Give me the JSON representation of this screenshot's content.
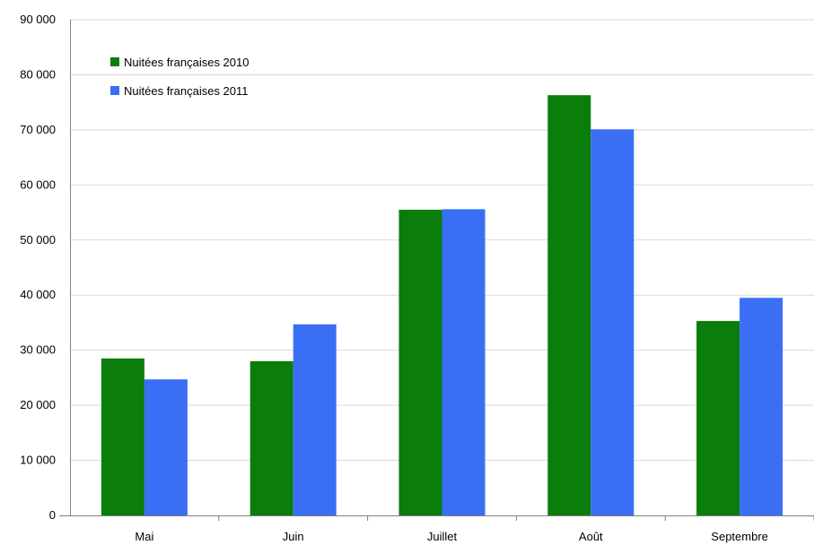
{
  "chart_data": {
    "type": "bar",
    "categories": [
      "Mai",
      "Juin",
      "Juillet",
      "Août",
      "Septembre"
    ],
    "series": [
      {
        "name": "Nuitées françaises 2010",
        "color": "#0a7d0a",
        "values": [
          28500,
          28000,
          55500,
          76300,
          35300
        ]
      },
      {
        "name": "Nuitées françaises 2011",
        "color": "#3a6ff5",
        "values": [
          24700,
          34700,
          55600,
          70100,
          39500
        ]
      }
    ],
    "yticks": [
      "0",
      "10 000",
      "20 000",
      "30 000",
      "40 000",
      "50 000",
      "60 000",
      "70 000",
      "80 000",
      "90 000"
    ],
    "ylim": [
      0,
      90000
    ],
    "grid": true,
    "legend_position": "top-left",
    "title": "",
    "xlabel": "",
    "ylabel": ""
  }
}
